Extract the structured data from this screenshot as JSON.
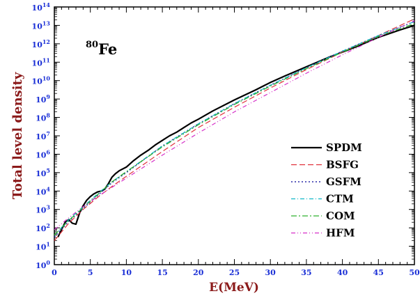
{
  "chart_data": {
    "type": "line",
    "xlabel": "E(MeV)",
    "ylabel": "Total level density",
    "annotation": {
      "mass": "80",
      "element": "Fe"
    },
    "xlim": [
      0,
      50
    ],
    "ylim_log10": [
      0,
      14
    ],
    "y_scale": "log",
    "grid": false,
    "legend_position": "right-lower",
    "x_ticks": [
      0,
      5,
      10,
      15,
      20,
      25,
      30,
      35,
      40,
      45,
      50
    ],
    "x_tick_labels": [
      "0",
      "5",
      "10",
      "15",
      "20",
      "25",
      "30",
      "35",
      "40",
      "45",
      "50"
    ],
    "y_ticks_exponent": [
      0,
      1,
      2,
      3,
      4,
      5,
      6,
      7,
      8,
      9,
      10,
      11,
      12,
      13,
      14
    ],
    "y_tick_base": "10",
    "series": [
      {
        "name": "SPDM",
        "color": "#000000",
        "dash": "solid",
        "width": 2.2,
        "x": [
          0.5,
          1,
          1.5,
          2,
          2.5,
          3,
          3.5,
          4,
          4.5,
          5,
          5.5,
          6,
          6.5,
          7,
          7.5,
          8,
          8.5,
          9,
          10,
          11,
          12,
          13,
          14,
          15,
          16,
          17,
          18,
          19,
          20,
          22,
          25,
          28,
          30,
          32,
          35,
          38,
          40,
          42,
          45,
          48,
          50
        ],
        "y_log10": [
          1.5,
          1.9,
          2.3,
          2.45,
          2.25,
          2.2,
          2.8,
          3.2,
          3.5,
          3.7,
          3.85,
          3.95,
          4.0,
          4.1,
          4.4,
          4.75,
          4.95,
          5.1,
          5.3,
          5.65,
          5.95,
          6.2,
          6.5,
          6.75,
          7.0,
          7.2,
          7.45,
          7.7,
          7.9,
          8.35,
          8.95,
          9.5,
          9.9,
          10.25,
          10.75,
          11.25,
          11.55,
          11.85,
          12.35,
          12.75,
          13.0
        ]
      },
      {
        "name": "BSFG",
        "color": "#e0303a",
        "dash": "8,4",
        "width": 1.2,
        "x": [
          0,
          2,
          4,
          6,
          8,
          10,
          15,
          20,
          25,
          30,
          35,
          40,
          45,
          50
        ],
        "y_log10": [
          1.3,
          2.25,
          3.0,
          3.65,
          4.25,
          4.8,
          6.15,
          7.45,
          8.55,
          9.6,
          10.6,
          11.55,
          12.45,
          13.35
        ]
      },
      {
        "name": "GSFM",
        "color": "#2c2ca8",
        "dash": "2,3",
        "width": 1.4,
        "x": [
          0,
          2,
          4,
          6,
          8,
          10,
          15,
          20,
          25,
          30,
          35,
          40,
          45,
          50
        ],
        "y_log10": [
          1.5,
          2.35,
          3.05,
          3.75,
          4.45,
          5.0,
          6.45,
          7.65,
          8.75,
          9.75,
          10.7,
          11.6,
          12.45,
          13.2
        ]
      },
      {
        "name": "CTM",
        "color": "#12b8c8",
        "dash": "6,3,1,3",
        "width": 1.2,
        "x": [
          0,
          2,
          4,
          6,
          8,
          10,
          15,
          20,
          25,
          30,
          35,
          40,
          45,
          50
        ],
        "y_log10": [
          1.6,
          2.45,
          3.15,
          3.85,
          4.5,
          5.05,
          6.45,
          7.65,
          8.75,
          9.75,
          10.7,
          11.6,
          12.45,
          13.2
        ]
      },
      {
        "name": "COM",
        "color": "#2fb02f",
        "dash": "8,3,2,3",
        "width": 1.3,
        "x": [
          0,
          2,
          4,
          6,
          8,
          10,
          15,
          20,
          25,
          30,
          35,
          40,
          45,
          50
        ],
        "y_log10": [
          1.6,
          2.4,
          3.1,
          3.8,
          4.5,
          5.05,
          6.4,
          7.6,
          8.7,
          9.7,
          10.65,
          11.55,
          12.4,
          13.1
        ]
      },
      {
        "name": "HFM",
        "color": "#d62fc8",
        "dash": "6,3,1,3,1,3",
        "width": 1.2,
        "x": [
          0,
          2,
          4,
          6,
          8,
          10,
          15,
          20,
          25,
          30,
          35,
          40,
          45,
          50
        ],
        "y_log10": [
          1.9,
          2.55,
          3.15,
          3.7,
          4.2,
          4.7,
          5.95,
          7.15,
          8.3,
          9.35,
          10.4,
          11.4,
          12.35,
          13.25
        ]
      }
    ]
  }
}
